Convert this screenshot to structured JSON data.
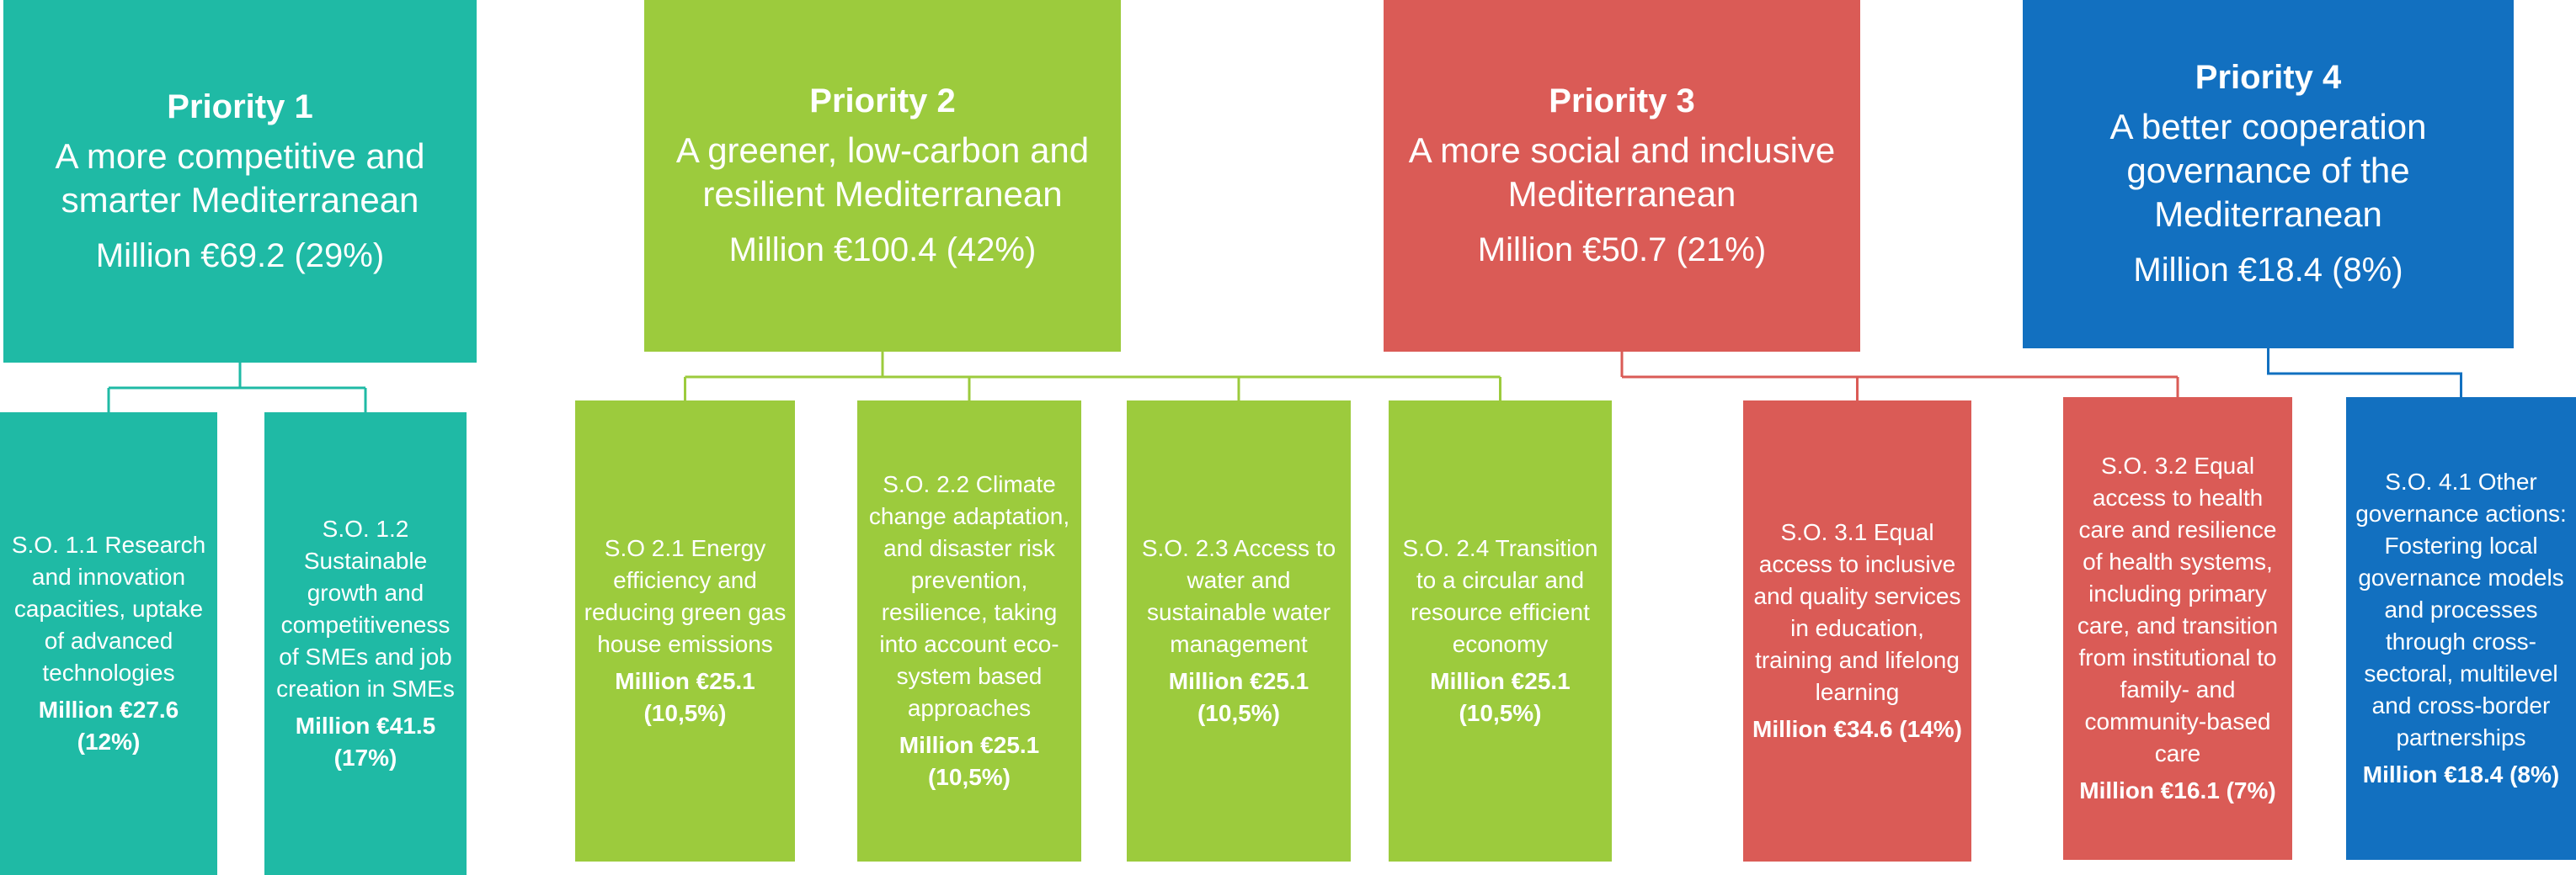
{
  "priorities": [
    {
      "title": "Priority 1",
      "description": "A more competitive and smarter Mediterranean",
      "amount": "Million €69.2 (29%)",
      "objectives": [
        {
          "text": "S.O. 1.1 Research and innovation capacities, uptake of advanced technologies",
          "amount": "Million €27.6 (12%)"
        },
        {
          "text": "S.O. 1.2 Sustainable growth and competitiveness of SMEs and job creation in SMEs",
          "amount": "Million €41.5 (17%)"
        }
      ]
    },
    {
      "title": "Priority 2",
      "description": "A greener, low-carbon and resilient Mediterranean",
      "amount": "Million €100.4 (42%)",
      "objectives": [
        {
          "text": "S.O 2.1 Energy efficiency and reducing green gas house emissions",
          "amount": "Million €25.1 (10,5%)"
        },
        {
          "text": "S.O. 2.2 Climate change adaptation, and disaster risk prevention, resilience, taking into account eco-system based approaches",
          "amount": "Million €25.1 (10,5%)"
        },
        {
          "text": "S.O. 2.3 Access to water and sustainable water management",
          "amount": "Million €25.1 (10,5%)"
        },
        {
          "text": "S.O. 2.4 Transition to a circular and resource efficient economy",
          "amount": "Million €25.1 (10,5%)"
        }
      ]
    },
    {
      "title": "Priority 3",
      "description": "A more social and inclusive Mediterranean",
      "amount": "Million €50.7 (21%)",
      "objectives": [
        {
          "text": "S.O. 3.1 Equal access to inclusive and quality services in education, training and lifelong learning",
          "amount": "Million €34.6 (14%)"
        },
        {
          "text": "S.O. 3.2 Equal access to health care and resilience of health systems, including primary care, and transition from institutional to family- and community-based care",
          "amount": "Million €16.1 (7%)"
        }
      ]
    },
    {
      "title": "Priority 4",
      "description": "A better cooperation governance of the Mediterranean",
      "amount": "Million €18.4 (8%)",
      "objectives": [
        {
          "text": "S.O. 4.1 Other governance actions: Fostering local governance models and processes through cross-sectoral, multilevel and cross-border partnerships",
          "amount": "Million €18.4 (8%)"
        }
      ]
    }
  ]
}
